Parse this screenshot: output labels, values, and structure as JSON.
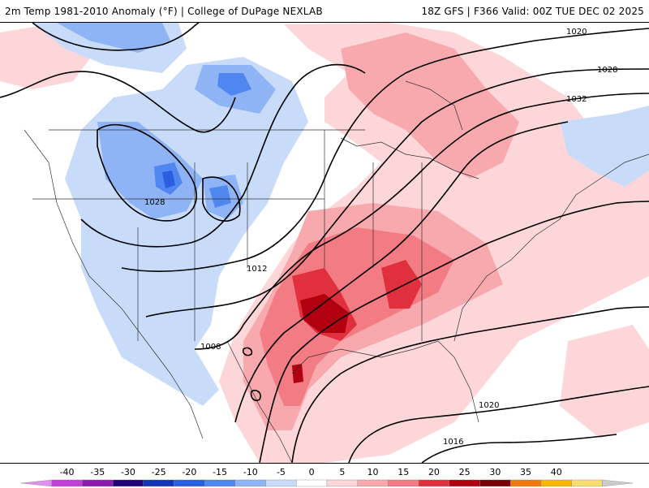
{
  "header": {
    "left_title": "2m Temp 1981-2010 Anomaly (°F) | College of DuPage NEXLAB",
    "right_title": "18Z GFS | F366 Valid: 00Z TUE DEC 02 2025"
  },
  "isobars": {
    "labels": [
      "1020",
      "1028",
      "1032",
      "1028",
      "1012",
      "1008",
      "1020",
      "1016"
    ]
  },
  "colorbar": {
    "ticks": [
      "-40",
      "-35",
      "-30",
      "-25",
      "-20",
      "-15",
      "-10",
      "-5",
      "0",
      "5",
      "10",
      "15",
      "20",
      "25",
      "30",
      "35",
      "40"
    ],
    "colors": [
      "#e08ff0",
      "#c23fdc",
      "#8b1cb0",
      "#22007a",
      "#1234b8",
      "#2a5ee0",
      "#4f86f0",
      "#8fb4f5",
      "#c8dcfa",
      "#ffffff",
      "#fcd6d8",
      "#f7a9ae",
      "#f27b84",
      "#e0303d",
      "#b00010",
      "#7a0008",
      "#f07a10",
      "#f5b800",
      "#f8dd70",
      "#cccccc"
    ]
  },
  "colors": {
    "coast": "#333333",
    "isobar": "#000000"
  }
}
